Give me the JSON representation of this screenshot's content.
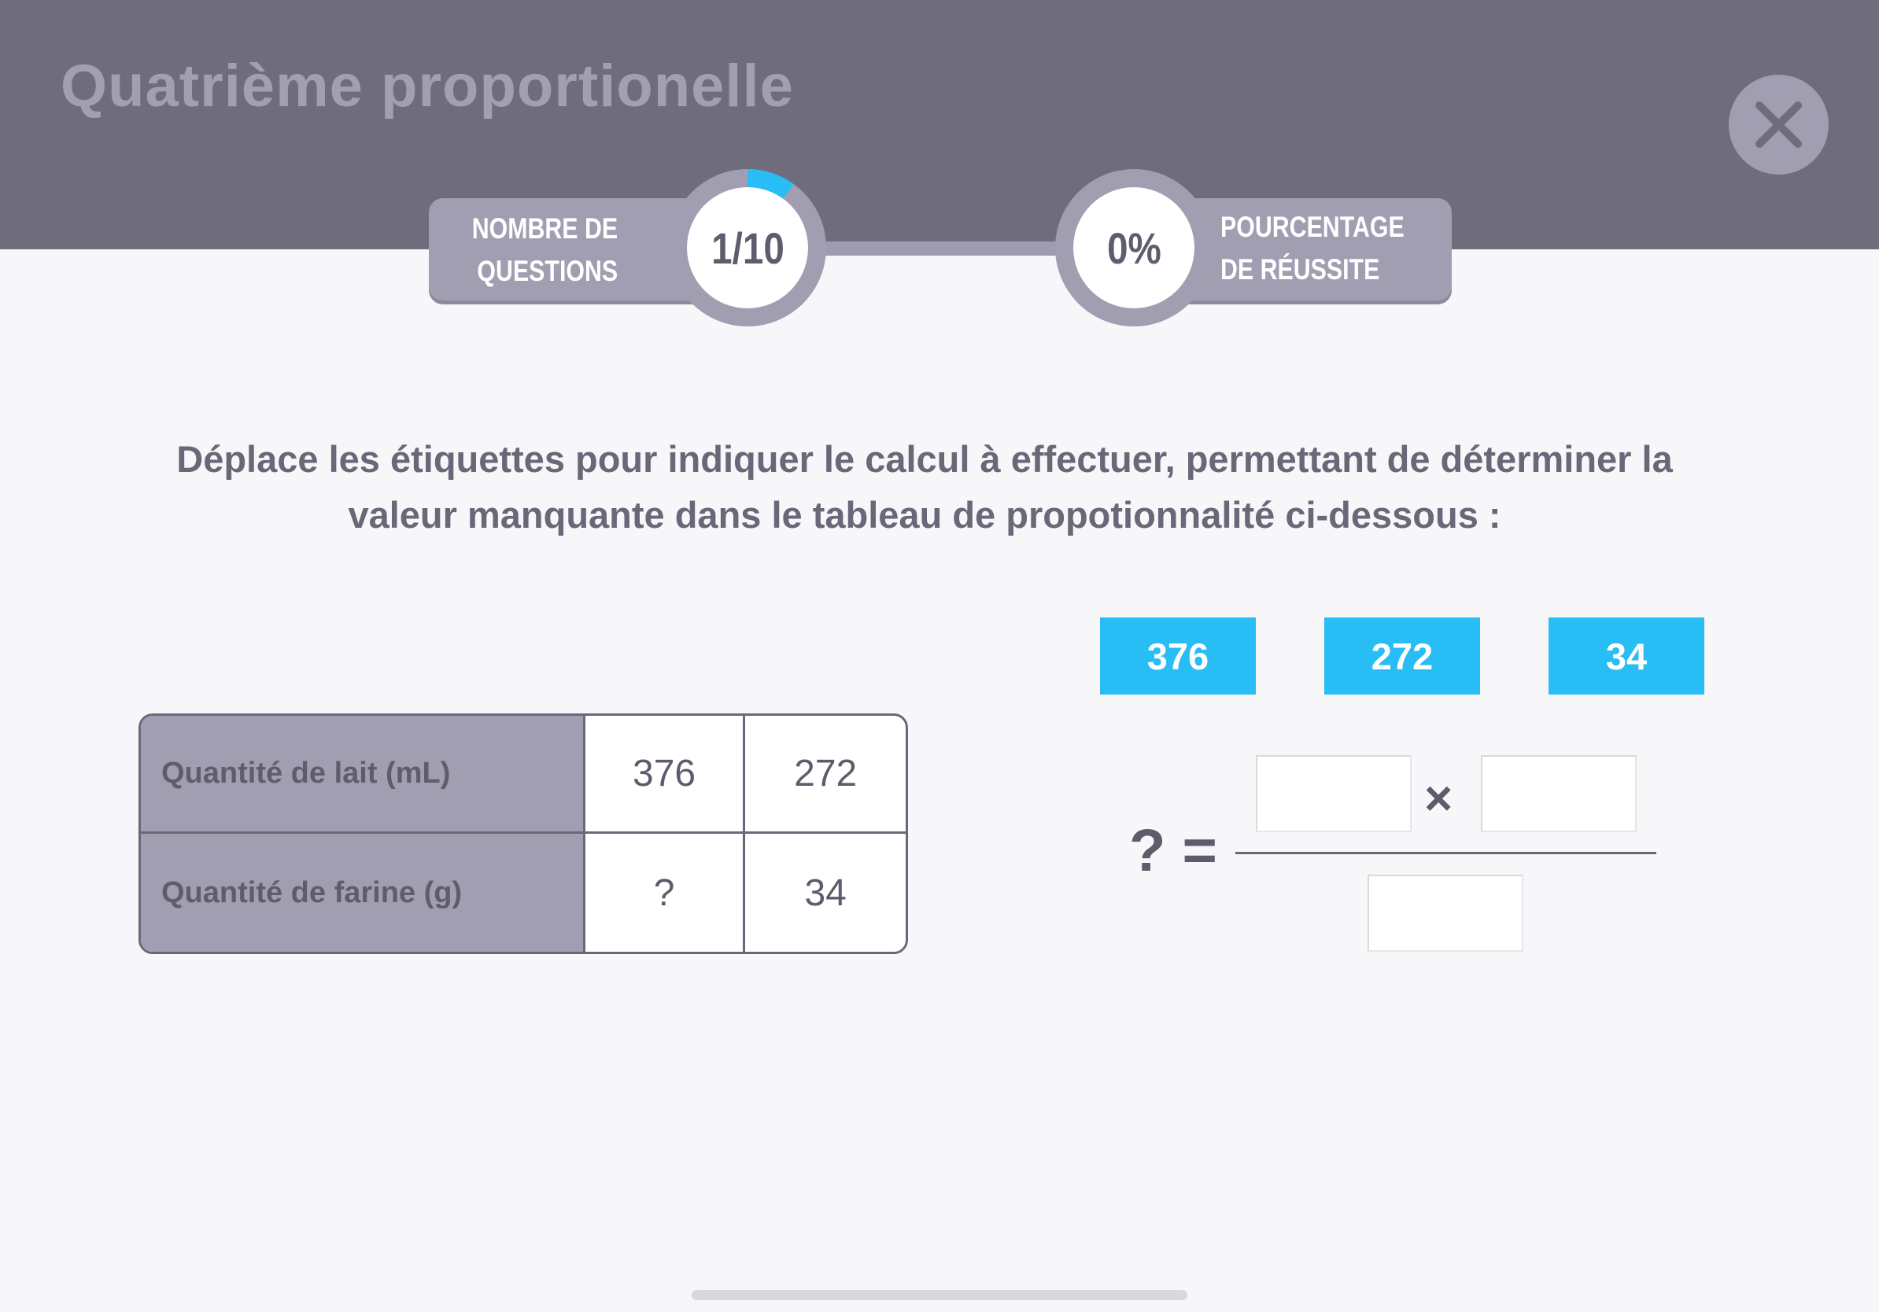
{
  "header": {
    "title": "Quatrième proportionelle",
    "close_icon": "close-icon"
  },
  "progress": {
    "questions_label_line1": "NOMBRE DE",
    "questions_label_line2": "QUESTIONS",
    "questions_value": "1/10",
    "questions_fraction": 0.1,
    "success_label_line1": "POURCENTAGE",
    "success_label_line2": "DE RÉUSSITE",
    "success_value": "0%",
    "accent_color": "#29bdf5"
  },
  "instruction": {
    "line1": "Déplace les étiquettes pour indiquer le calcul à effectuer, permettant de déterminer la",
    "line2": "valeur manquante dans le tableau de propotionnalité ci-dessous :"
  },
  "table": {
    "rows": [
      {
        "label": "Quantité de lait (mL)",
        "values": [
          "376",
          "272"
        ]
      },
      {
        "label": "Quantité de farine (g)",
        "values": [
          "?",
          "34"
        ]
      }
    ]
  },
  "tags": [
    "376",
    "272",
    "34"
  ],
  "equation": {
    "lhs": "? =",
    "operator": "×"
  }
}
